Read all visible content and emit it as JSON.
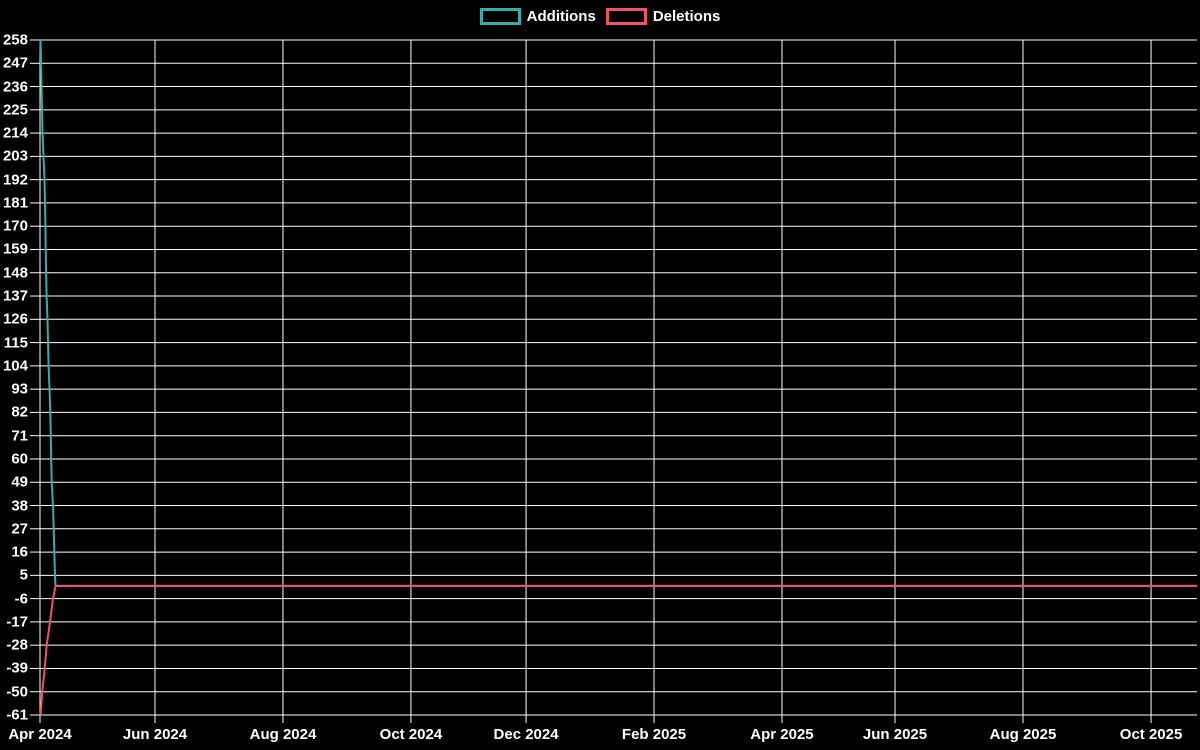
{
  "legend": {
    "items": [
      {
        "label": "Additions",
        "color": "#38aeaa"
      },
      {
        "label": "Deletions",
        "color": "#f2506b"
      }
    ]
  },
  "chart_data": {
    "type": "line",
    "title": "",
    "legend_position": "top",
    "grid": true,
    "background": "#000000",
    "grid_color": "#ffffff",
    "text_color": "#ffffff",
    "x_axis": {
      "unit": "time (fraction of axis span, Apr 2024 to just past Oct 2025)",
      "ticks": [
        {
          "label": "Apr 2024",
          "f": 0.0
        },
        {
          "label": "Jun 2024",
          "f": 0.0994
        },
        {
          "label": "Aug 2024",
          "f": 0.21
        },
        {
          "label": "Oct 2024",
          "f": 0.3206
        },
        {
          "label": "Dec 2024",
          "f": 0.4201
        },
        {
          "label": "Feb 2025",
          "f": 0.5307
        },
        {
          "label": "Apr 2025",
          "f": 0.6413
        },
        {
          "label": "Jun 2025",
          "f": 0.739
        },
        {
          "label": "Aug 2025",
          "f": 0.8496
        },
        {
          "label": "Oct 2025",
          "f": 0.9603
        }
      ]
    },
    "y_axis": {
      "max": 258,
      "min": -61,
      "step": 11,
      "ticks": [
        258,
        247,
        236,
        225,
        214,
        203,
        192,
        181,
        170,
        159,
        148,
        137,
        126,
        115,
        104,
        93,
        82,
        71,
        60,
        49,
        38,
        27,
        16,
        5,
        -6,
        -17,
        -28,
        -39,
        -50,
        -61
      ]
    },
    "series": [
      {
        "name": "Additions",
        "color": "#38aeaa",
        "points": [
          [
            0.0004,
            258
          ],
          [
            0.0009,
            247
          ],
          [
            0.0013,
            236
          ],
          [
            0.0017,
            225
          ],
          [
            0.0022,
            214
          ],
          [
            0.003,
            203
          ],
          [
            0.0039,
            192
          ],
          [
            0.0043,
            181
          ],
          [
            0.0047,
            170
          ],
          [
            0.0049,
            159
          ],
          [
            0.0053,
            148
          ],
          [
            0.0057,
            137
          ],
          [
            0.0065,
            126
          ],
          [
            0.0069,
            115
          ],
          [
            0.0074,
            104
          ],
          [
            0.0082,
            93
          ],
          [
            0.0089,
            82
          ],
          [
            0.0093,
            71
          ],
          [
            0.0097,
            60
          ],
          [
            0.0101,
            49
          ],
          [
            0.0112,
            38
          ],
          [
            0.0118,
            27
          ],
          [
            0.0124,
            16
          ],
          [
            0.013,
            5
          ],
          [
            0.0134,
            0
          ],
          [
            1,
            0
          ]
        ]
      },
      {
        "name": "Deletions",
        "color": "#f2506b",
        "points": [
          [
            0.0005,
            -61
          ],
          [
            0.002,
            -50
          ],
          [
            0.0041,
            -39
          ],
          [
            0.0058,
            -28
          ],
          [
            0.0086,
            -17
          ],
          [
            0.0112,
            -6
          ],
          [
            0.0134,
            0
          ],
          [
            1,
            0
          ]
        ]
      }
    ]
  }
}
